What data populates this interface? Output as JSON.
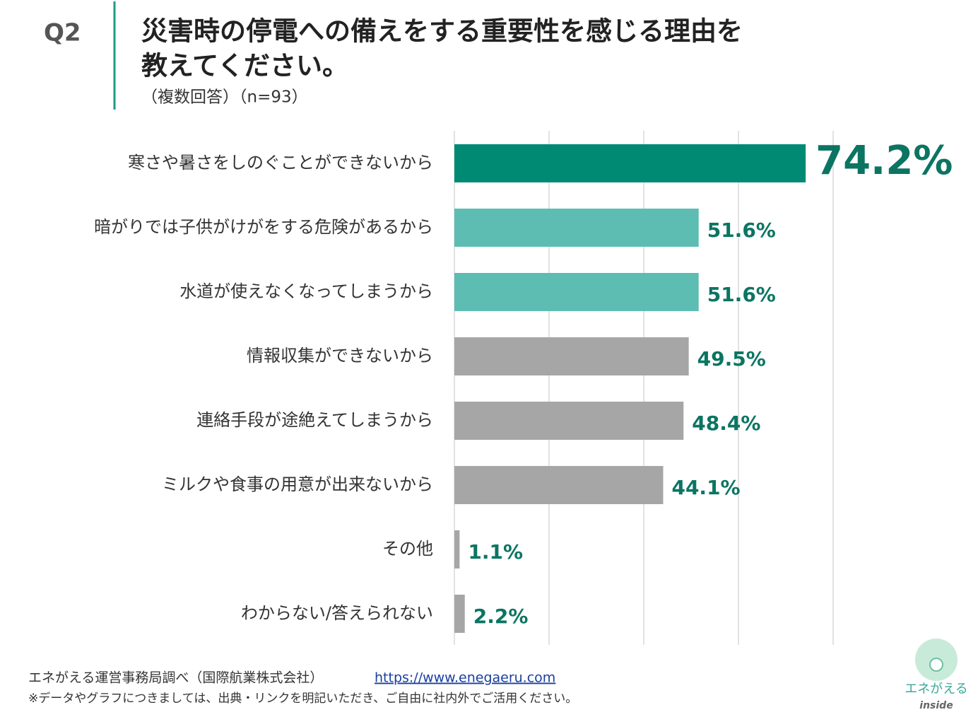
{
  "header": {
    "label": "Q2",
    "note": "（複数回答）（n=93）"
  },
  "chart_data": {
    "type": "bar",
    "orientation": "horizontal",
    "title": [
      "災害時の停電への備えをする重要性を感じる理由を",
      "教えてください。"
    ],
    "categories": [
      "寒さや暑さをしのぐことができないから",
      "暗がりでは子供がけがをする危険があるから",
      "水道が使えなくなってしまうから",
      "情報収集ができないから",
      "連絡手段が途絶えてしまうから",
      "ミルクや食事の用意が出来ないから",
      "その他",
      "わからない/答えられない"
    ],
    "values": [
      74.2,
      51.6,
      51.6,
      49.5,
      48.4,
      44.1,
      1.1,
      2.2
    ],
    "value_labels": [
      "74.2%",
      "51.6%",
      "51.6%",
      "49.5%",
      "48.4%",
      "44.1%",
      "1.1%",
      "2.2%"
    ],
    "colors": [
      "#008a74",
      "#5dbdb3",
      "#5dbdb3",
      "#a6a6a6",
      "#a6a6a6",
      "#a6a6a6",
      "#a6a6a6",
      "#a6a6a6"
    ],
    "label_color": "#0b7562",
    "xlim": [
      0,
      80
    ],
    "xticks": [
      0,
      20,
      40,
      60,
      80
    ],
    "grid": true
  },
  "footer": {
    "source": "エネがえる運営事務局調べ（国際航業株式会社）",
    "url": "https://www.enegaeru.com",
    "notice": "※データやグラフにつきましては、出典・リンクを明記いただき、ご自由に社内外でご活用ください。"
  },
  "logo": {
    "name": "エネがえる",
    "tagline": "inside"
  }
}
